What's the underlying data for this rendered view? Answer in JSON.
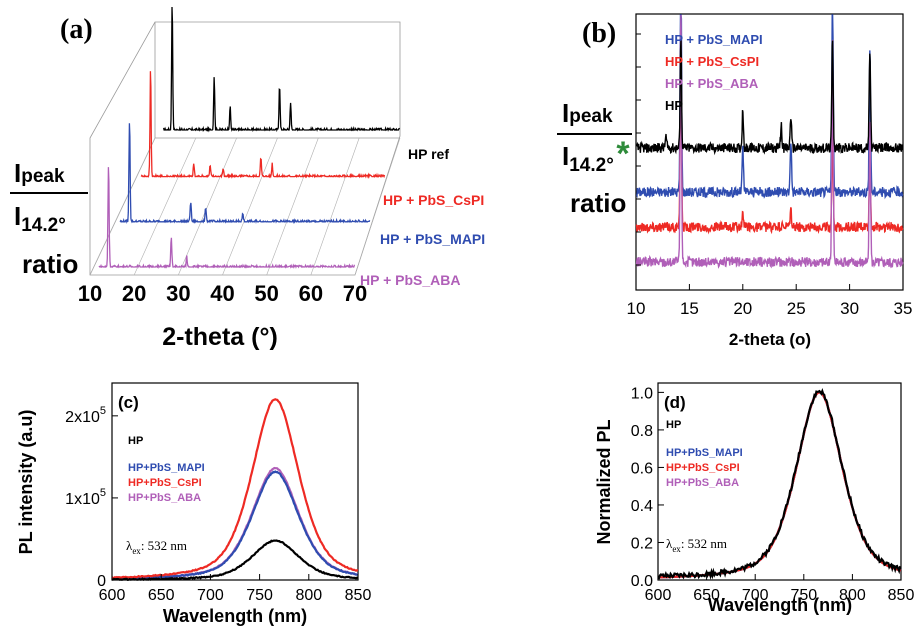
{
  "chart_data": [
    {
      "panel": "(a)",
      "type": "line",
      "projection": "3d-waterfall",
      "xlabel": "2-theta (°)",
      "ylabel": {
        "line1": "I",
        "sub1": "peak",
        "line2": "I",
        "sub2": "14.2°",
        "line3": "ratio"
      },
      "xlim": [
        10,
        70
      ],
      "xticks": [
        "10",
        "20",
        "30",
        "40",
        "50",
        "60",
        "70"
      ],
      "grid": true,
      "series": [
        {
          "name": "HP ref",
          "color": "#000000",
          "peaks": [
            [
              14.2,
              1.0
            ],
            [
              24.5,
              0.42
            ],
            [
              28.4,
              0.18
            ],
            [
              40.5,
              0.36
            ],
            [
              43.2,
              0.22
            ]
          ]
        },
        {
          "name": "HP + PbS_CsPI",
          "color": "#ee2a24",
          "peaks": [
            [
              14.2,
              1.0
            ],
            [
              24.5,
              0.12
            ],
            [
              28.4,
              0.1
            ],
            [
              31.5,
              0.08
            ],
            [
              40.5,
              0.17
            ],
            [
              43.2,
              0.12
            ]
          ]
        },
        {
          "name": "HP + PbS_MAPI",
          "color": "#2f4cb0",
          "peaks": [
            [
              14.2,
              1.0
            ],
            [
              28.4,
              0.2
            ],
            [
              31.9,
              0.14
            ],
            [
              40.5,
              0.09
            ]
          ]
        },
        {
          "name": "HP + PbS_ABA",
          "color": "#b05fb8",
          "peaks": [
            [
              14.2,
              1.0
            ],
            [
              28.4,
              0.28
            ],
            [
              31.9,
              0.1
            ]
          ]
        }
      ]
    },
    {
      "panel": "(b)",
      "type": "line",
      "xlabel": "2-theta (o)",
      "ylabel": {
        "line1": "I",
        "sub1": "peak",
        "line2": "I",
        "sub2": "14.2°",
        "line3": "ratio"
      },
      "xlim": [
        10,
        35
      ],
      "xticks": [
        "10",
        "15",
        "20",
        "25",
        "30",
        "35"
      ],
      "annotation": {
        "text": "*",
        "x": 12.8,
        "color": "#2e8b3a"
      },
      "series": [
        {
          "name": "HP + PbS_MAPI",
          "color": "#2f4cb0",
          "peaks": [
            [
              14.2,
              1.0
            ],
            [
              20.0,
              0.18
            ],
            [
              24.5,
              0.22
            ],
            [
              28.4,
              0.9
            ],
            [
              31.9,
              0.6
            ]
          ]
        },
        {
          "name": "HP + PbS_CsPI",
          "color": "#ee2a24",
          "peaks": [
            [
              14.2,
              1.0
            ],
            [
              20.0,
              0.08
            ],
            [
              24.5,
              0.1
            ],
            [
              28.4,
              0.55
            ],
            [
              31.9,
              0.35
            ]
          ]
        },
        {
          "name": "HP + PbS_ABA",
          "color": "#b05fb8",
          "peaks": [
            [
              14.2,
              1.0
            ],
            [
              28.4,
              0.9
            ],
            [
              31.9,
              0.55
            ]
          ]
        },
        {
          "name": "HP",
          "color": "#000000",
          "peaks": [
            [
              12.8,
              0.1
            ],
            [
              14.2,
              1.0
            ],
            [
              20.0,
              0.35
            ],
            [
              23.6,
              0.2
            ],
            [
              24.5,
              0.3
            ],
            [
              28.4,
              1.0
            ],
            [
              31.9,
              0.9
            ]
          ]
        }
      ]
    },
    {
      "panel": "(c)",
      "type": "line",
      "xlabel": "Wavelength (nm)",
      "ylabel": "PL intensity (a.u)",
      "xlim": [
        600,
        850
      ],
      "ylim": [
        0,
        240000
      ],
      "xticks": [
        "600",
        "650",
        "700",
        "750",
        "800",
        "850"
      ],
      "yticks": [
        {
          "mant": "0",
          "exp": ""
        },
        {
          "mant": "1x10",
          "exp": "5"
        },
        {
          "mant": "2x10",
          "exp": "5"
        }
      ],
      "annotation": {
        "main": "λ",
        "sub": "ex",
        "rest": ": 532 nm"
      },
      "peak_center": 766,
      "series": [
        {
          "name": "HP",
          "color": "#000000",
          "peak": 48000
        },
        {
          "name": "HP+PbS_MAPI",
          "color": "#2f4cb0",
          "peak": 132000
        },
        {
          "name": "HP+PbS_CsPI",
          "color": "#ee2a24",
          "peak": 220000
        },
        {
          "name": "HP+PbS_ABA",
          "color": "#b05fb8",
          "peak": 136000
        }
      ]
    },
    {
      "panel": "(d)",
      "type": "line",
      "xlabel": "Wavelength (nm)",
      "ylabel": "Normalized PL",
      "xlim": [
        600,
        850
      ],
      "ylim": [
        0,
        1.05
      ],
      "xticks": [
        "600",
        "650",
        "700",
        "750",
        "800",
        "850"
      ],
      "yticks": [
        "0.0",
        "0.2",
        "0.4",
        "0.6",
        "0.8",
        "1.0"
      ],
      "annotation": {
        "main": "λ",
        "sub": "ex",
        "rest": ": 532 nm"
      },
      "peak_center": 766,
      "series": [
        {
          "name": "HP",
          "color": "#000000",
          "peak": 1.0
        },
        {
          "name": "HP+PbS_MAPI",
          "color": "#2f4cb0",
          "peak": 1.0
        },
        {
          "name": "HP+PbS_CsPI",
          "color": "#ee2a24",
          "peak": 1.0
        },
        {
          "name": "HP+PbS_ABA",
          "color": "#b05fb8",
          "peak": 1.0
        }
      ]
    }
  ]
}
